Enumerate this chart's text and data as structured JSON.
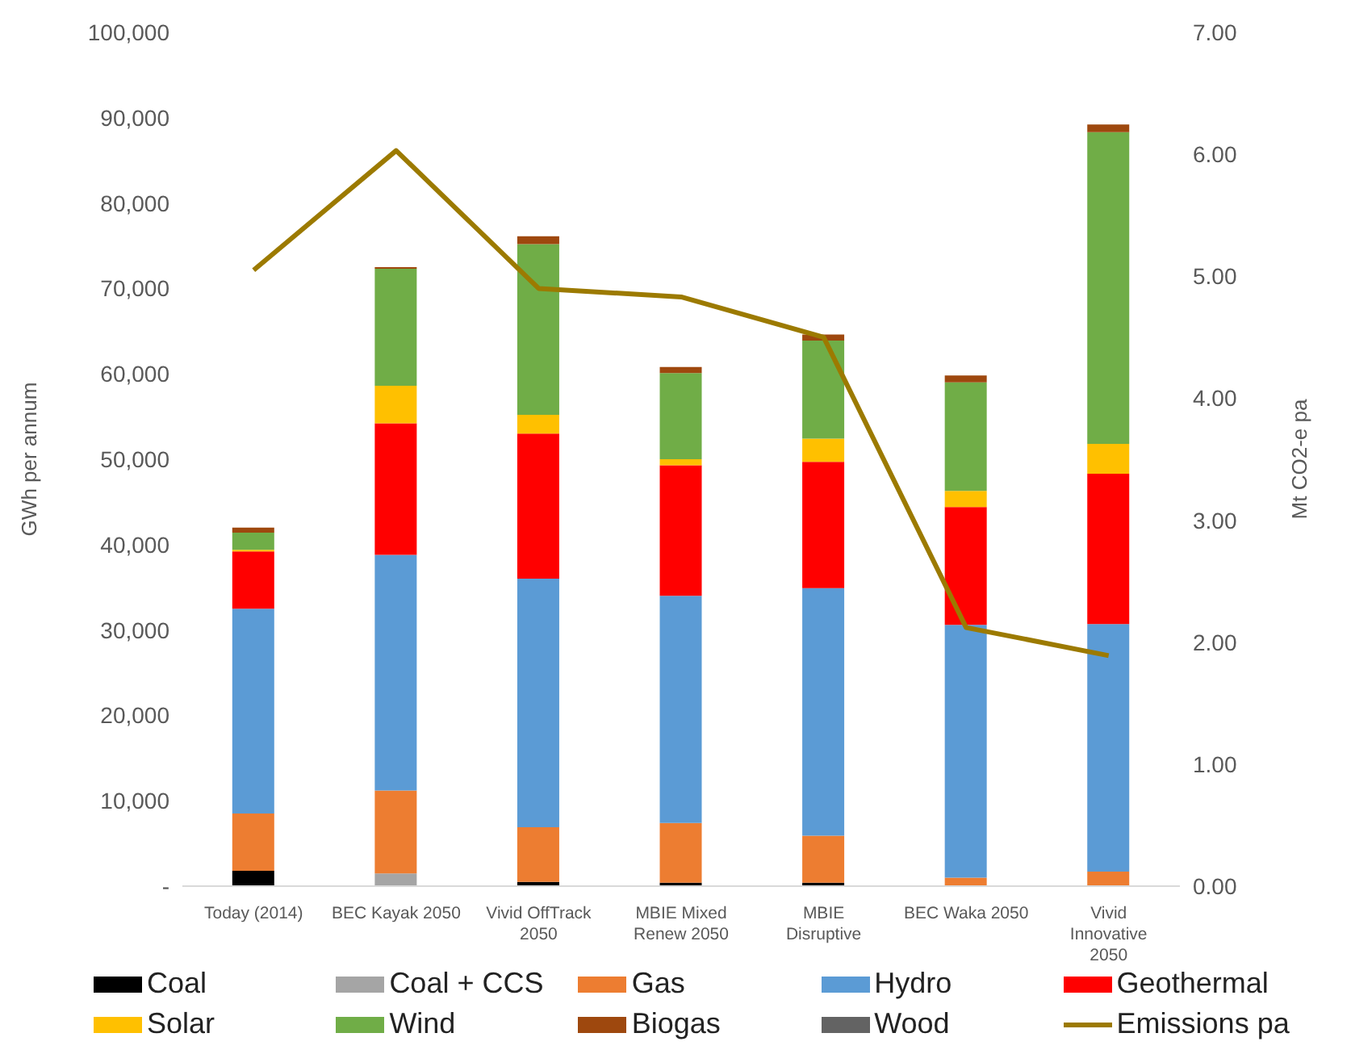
{
  "chart_data": {
    "type": "bar",
    "stacked": true,
    "ylabel": "GWh per annum",
    "y2label": "Mt CO2-e pa",
    "categories": [
      "Today (2014)",
      "BEC Kayak 2050",
      "Vivid OffTrack 2050",
      "MBIE Mixed Renew 2050",
      "MBIE Disruptive",
      "BEC Waka 2050",
      "Vivid Innovative 2050"
    ],
    "series": [
      {
        "name": "Coal",
        "color": "#000000",
        "values": [
          1800,
          0,
          500,
          400,
          400,
          0,
          0
        ]
      },
      {
        "name": "Coal + CCS",
        "color": "#a5a5a5",
        "values": [
          0,
          1500,
          0,
          0,
          0,
          0,
          0
        ]
      },
      {
        "name": "Gas",
        "color": "#ed7d31",
        "values": [
          6700,
          9700,
          6400,
          7000,
          5500,
          1000,
          1700
        ]
      },
      {
        "name": "Hydro",
        "color": "#5b9bd5",
        "values": [
          24000,
          27600,
          29100,
          26600,
          29000,
          29600,
          29000
        ]
      },
      {
        "name": "Geothermal",
        "color": "#ff0000",
        "values": [
          6700,
          15400,
          17000,
          15300,
          14800,
          13800,
          17600
        ]
      },
      {
        "name": "Solar",
        "color": "#ffc000",
        "values": [
          200,
          4400,
          2200,
          700,
          2700,
          1900,
          3500
        ]
      },
      {
        "name": "Wind",
        "color": "#70ad47",
        "values": [
          2000,
          13700,
          20000,
          10100,
          11500,
          12700,
          36500
        ]
      },
      {
        "name": "Biogas",
        "color": "#9e480e",
        "values": [
          600,
          200,
          900,
          700,
          700,
          800,
          900
        ]
      },
      {
        "name": "Wood",
        "color": "#636363",
        "values": [
          0,
          0,
          0,
          0,
          0,
          0,
          0
        ]
      },
      {
        "name": "Emissions pa",
        "type": "line",
        "axis": "y2",
        "color": "#9c7a00",
        "values": [
          5.05,
          6.03,
          4.9,
          4.83,
          4.5,
          2.12,
          1.89
        ]
      }
    ],
    "ylim": [
      0,
      100000
    ],
    "yticks": [
      {
        "value": 0,
        "label": "-"
      },
      {
        "value": 10000,
        "label": "10,000"
      },
      {
        "value": 20000,
        "label": "20,000"
      },
      {
        "value": 30000,
        "label": "30,000"
      },
      {
        "value": 40000,
        "label": "40,000"
      },
      {
        "value": 50000,
        "label": "50,000"
      },
      {
        "value": 60000,
        "label": "60,000"
      },
      {
        "value": 70000,
        "label": "70,000"
      },
      {
        "value": 80000,
        "label": "80,000"
      },
      {
        "value": 90000,
        "label": "90,000"
      },
      {
        "value": 100000,
        "label": "100,000"
      }
    ],
    "y2lim": [
      0,
      7
    ],
    "y2ticks": [
      {
        "value": 0,
        "label": "0.00"
      },
      {
        "value": 1,
        "label": "1.00"
      },
      {
        "value": 2,
        "label": "2.00"
      },
      {
        "value": 3,
        "label": "3.00"
      },
      {
        "value": 4,
        "label": "4.00"
      },
      {
        "value": 5,
        "label": "5.00"
      },
      {
        "value": 6,
        "label": "6.00"
      },
      {
        "value": 7,
        "label": "7.00"
      }
    ],
    "grid": false,
    "legend": "bottom",
    "marker": "none",
    "line_style": "solid"
  }
}
